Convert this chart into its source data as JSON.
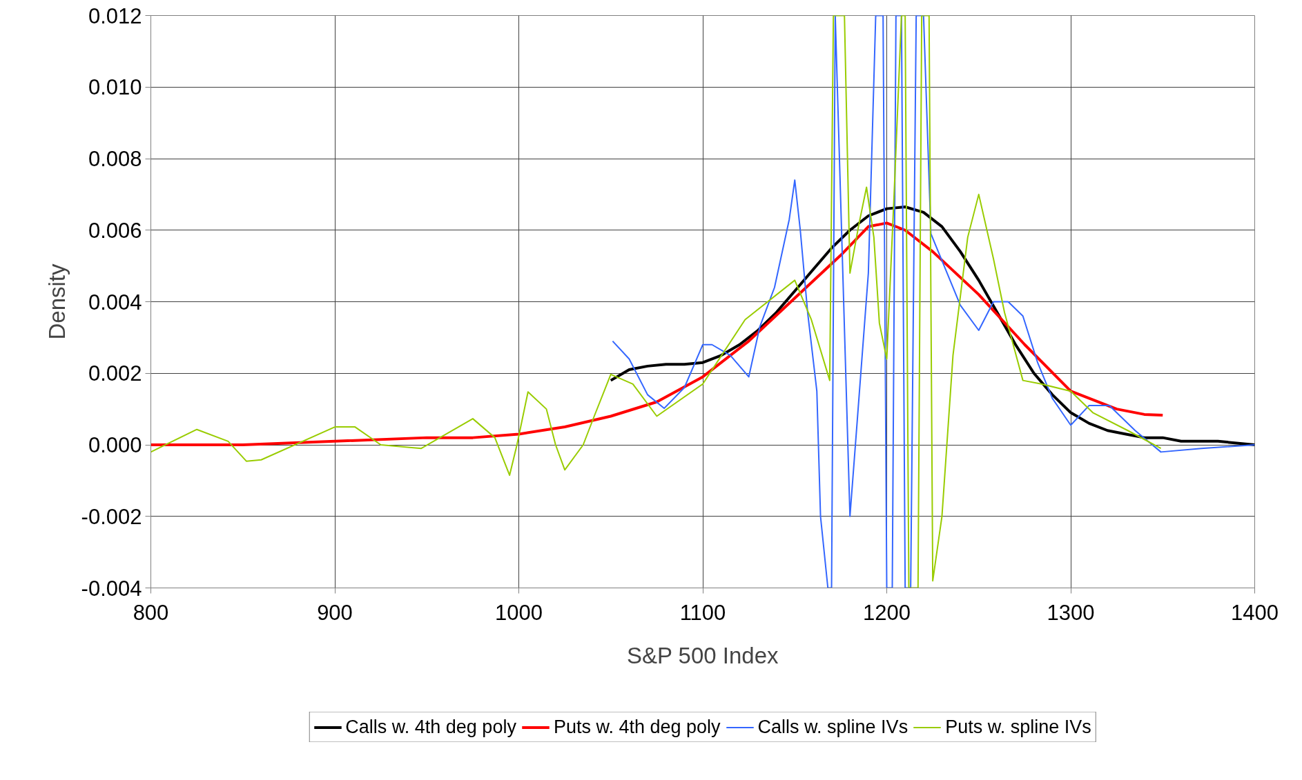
{
  "chart_data": {
    "type": "line",
    "xlabel": "S&P 500 Index",
    "ylabel": "Density",
    "xlim": [
      800,
      1400
    ],
    "xticks": [
      800,
      900,
      1000,
      1100,
      1200,
      1300,
      1400
    ],
    "ylim": [
      -0.004,
      0.012
    ],
    "yticks": [
      {
        "value": -0.004,
        "label": "-0.004"
      },
      {
        "value": -0.002,
        "label": "-0.002"
      },
      {
        "value": 0,
        "label": "0.000"
      },
      {
        "value": 0.002,
        "label": "0.002"
      },
      {
        "value": 0.004,
        "label": "0.004"
      },
      {
        "value": 0.006,
        "label": "0.006"
      },
      {
        "value": 0.008,
        "label": "0.008"
      },
      {
        "value": 0.01,
        "label": "0.010"
      },
      {
        "value": 0.012,
        "label": "0.012"
      }
    ],
    "grid": true,
    "legend": "bottom",
    "marker": "none",
    "line_style": "solid",
    "series": [
      {
        "name": "Calls w. 4th deg poly",
        "color": "#000000",
        "x": [
          1050,
          1060,
          1070,
          1080,
          1090,
          1100,
          1110,
          1120,
          1130,
          1140,
          1150,
          1160,
          1170,
          1180,
          1190,
          1200,
          1210,
          1220,
          1230,
          1240,
          1250,
          1260,
          1270,
          1280,
          1290,
          1300,
          1310,
          1320,
          1330,
          1340,
          1350,
          1360,
          1370,
          1380,
          1400
        ],
        "values": [
          0.0018,
          0.0021,
          0.0022,
          0.00225,
          0.00225,
          0.0023,
          0.0025,
          0.0028,
          0.0032,
          0.0037,
          0.0043,
          0.0049,
          0.0055,
          0.006,
          0.0064,
          0.0066,
          0.00665,
          0.0065,
          0.0061,
          0.0054,
          0.0046,
          0.0037,
          0.0028,
          0.002,
          0.0014,
          0.0009,
          0.0006,
          0.0004,
          0.0003,
          0.0002,
          0.0002,
          0.0001,
          0.0001,
          0.0001,
          0.0
        ]
      },
      {
        "name": "Puts w. 4th deg poly",
        "color": "#ff0000",
        "x": [
          800,
          850,
          900,
          950,
          975,
          1000,
          1025,
          1050,
          1075,
          1100,
          1125,
          1150,
          1175,
          1190,
          1200,
          1210,
          1225,
          1250,
          1275,
          1300,
          1325,
          1340,
          1350
        ],
        "values": [
          0.0,
          0.0,
          0.0001,
          0.0002,
          0.0002,
          0.0003,
          0.0005,
          0.0008,
          0.0012,
          0.0019,
          0.0029,
          0.0041,
          0.0053,
          0.0061,
          0.0062,
          0.006,
          0.0054,
          0.0042,
          0.0028,
          0.0015,
          0.001,
          0.00085,
          0.00083
        ]
      },
      {
        "name": "Calls w. spline IVs",
        "color": "#3366ff",
        "x": [
          1051,
          1060,
          1070,
          1079,
          1090,
          1100,
          1105,
          1115,
          1125,
          1131,
          1139,
          1147,
          1150,
          1153,
          1157,
          1162,
          1164,
          1168,
          1170,
          1172,
          1180,
          1184,
          1190,
          1194,
          1198,
          1200,
          1203,
          1205,
          1208,
          1210,
          1213,
          1216,
          1220,
          1224,
          1228,
          1240,
          1250,
          1258,
          1266,
          1274,
          1282,
          1290,
          1300,
          1310,
          1321,
          1335,
          1349,
          1371,
          1400
        ],
        "values": [
          0.0029,
          0.0024,
          0.0014,
          0.00102,
          0.0016,
          0.0028,
          0.0028,
          0.0025,
          0.0019,
          0.0033,
          0.0044,
          0.0063,
          0.0074,
          0.006,
          0.0037,
          0.0015,
          -0.002,
          -0.004,
          -0.004,
          0.012,
          -0.002,
          0.0007,
          0.0048,
          0.012,
          0.012,
          -0.004,
          -0.004,
          0.012,
          0.012,
          -0.004,
          -0.004,
          0.012,
          0.012,
          0.0059,
          0.0054,
          0.0039,
          0.0032,
          0.004,
          0.004,
          0.0036,
          0.0023,
          0.0013,
          0.00055,
          0.0011,
          0.0011,
          0.0004,
          -0.0002,
          -0.0001,
          0.0
        ]
      },
      {
        "name": "Puts w. spline IVs",
        "color": "#99cc00",
        "x": [
          800,
          825,
          842,
          852,
          860,
          900,
          911,
          925,
          947,
          975,
          987,
          995,
          999,
          1005,
          1015,
          1020,
          1025,
          1035,
          1041,
          1050,
          1062,
          1075,
          1100,
          1123,
          1150,
          1159,
          1169,
          1171,
          1177,
          1180,
          1185,
          1189,
          1193,
          1196,
          1200,
          1204,
          1208,
          1210,
          1212,
          1217,
          1219,
          1223,
          1225,
          1230,
          1236,
          1244,
          1250,
          1258,
          1264,
          1274,
          1284,
          1300,
          1312,
          1331,
          1349
        ],
        "values": [
          -0.0002,
          0.00043,
          0.0001,
          -0.00046,
          -0.00042,
          0.0005,
          0.0005,
          0.0,
          -0.0001,
          0.00073,
          0.0002,
          -0.00085,
          0.0,
          0.00148,
          0.001,
          0.0,
          -0.0007,
          0.0,
          0.0008,
          0.00197,
          0.0017,
          0.0008,
          0.0017,
          0.0035,
          0.0046,
          0.0035,
          0.0018,
          0.012,
          0.012,
          0.0048,
          0.0062,
          0.0072,
          0.0058,
          0.0034,
          0.0024,
          0.007,
          0.012,
          0.012,
          -0.004,
          -0.004,
          0.012,
          0.012,
          -0.0038,
          -0.002,
          0.0025,
          0.0058,
          0.007,
          0.0052,
          0.0037,
          0.0018,
          0.0017,
          0.0015,
          0.0009,
          0.0004,
          -0.0001
        ]
      }
    ]
  }
}
